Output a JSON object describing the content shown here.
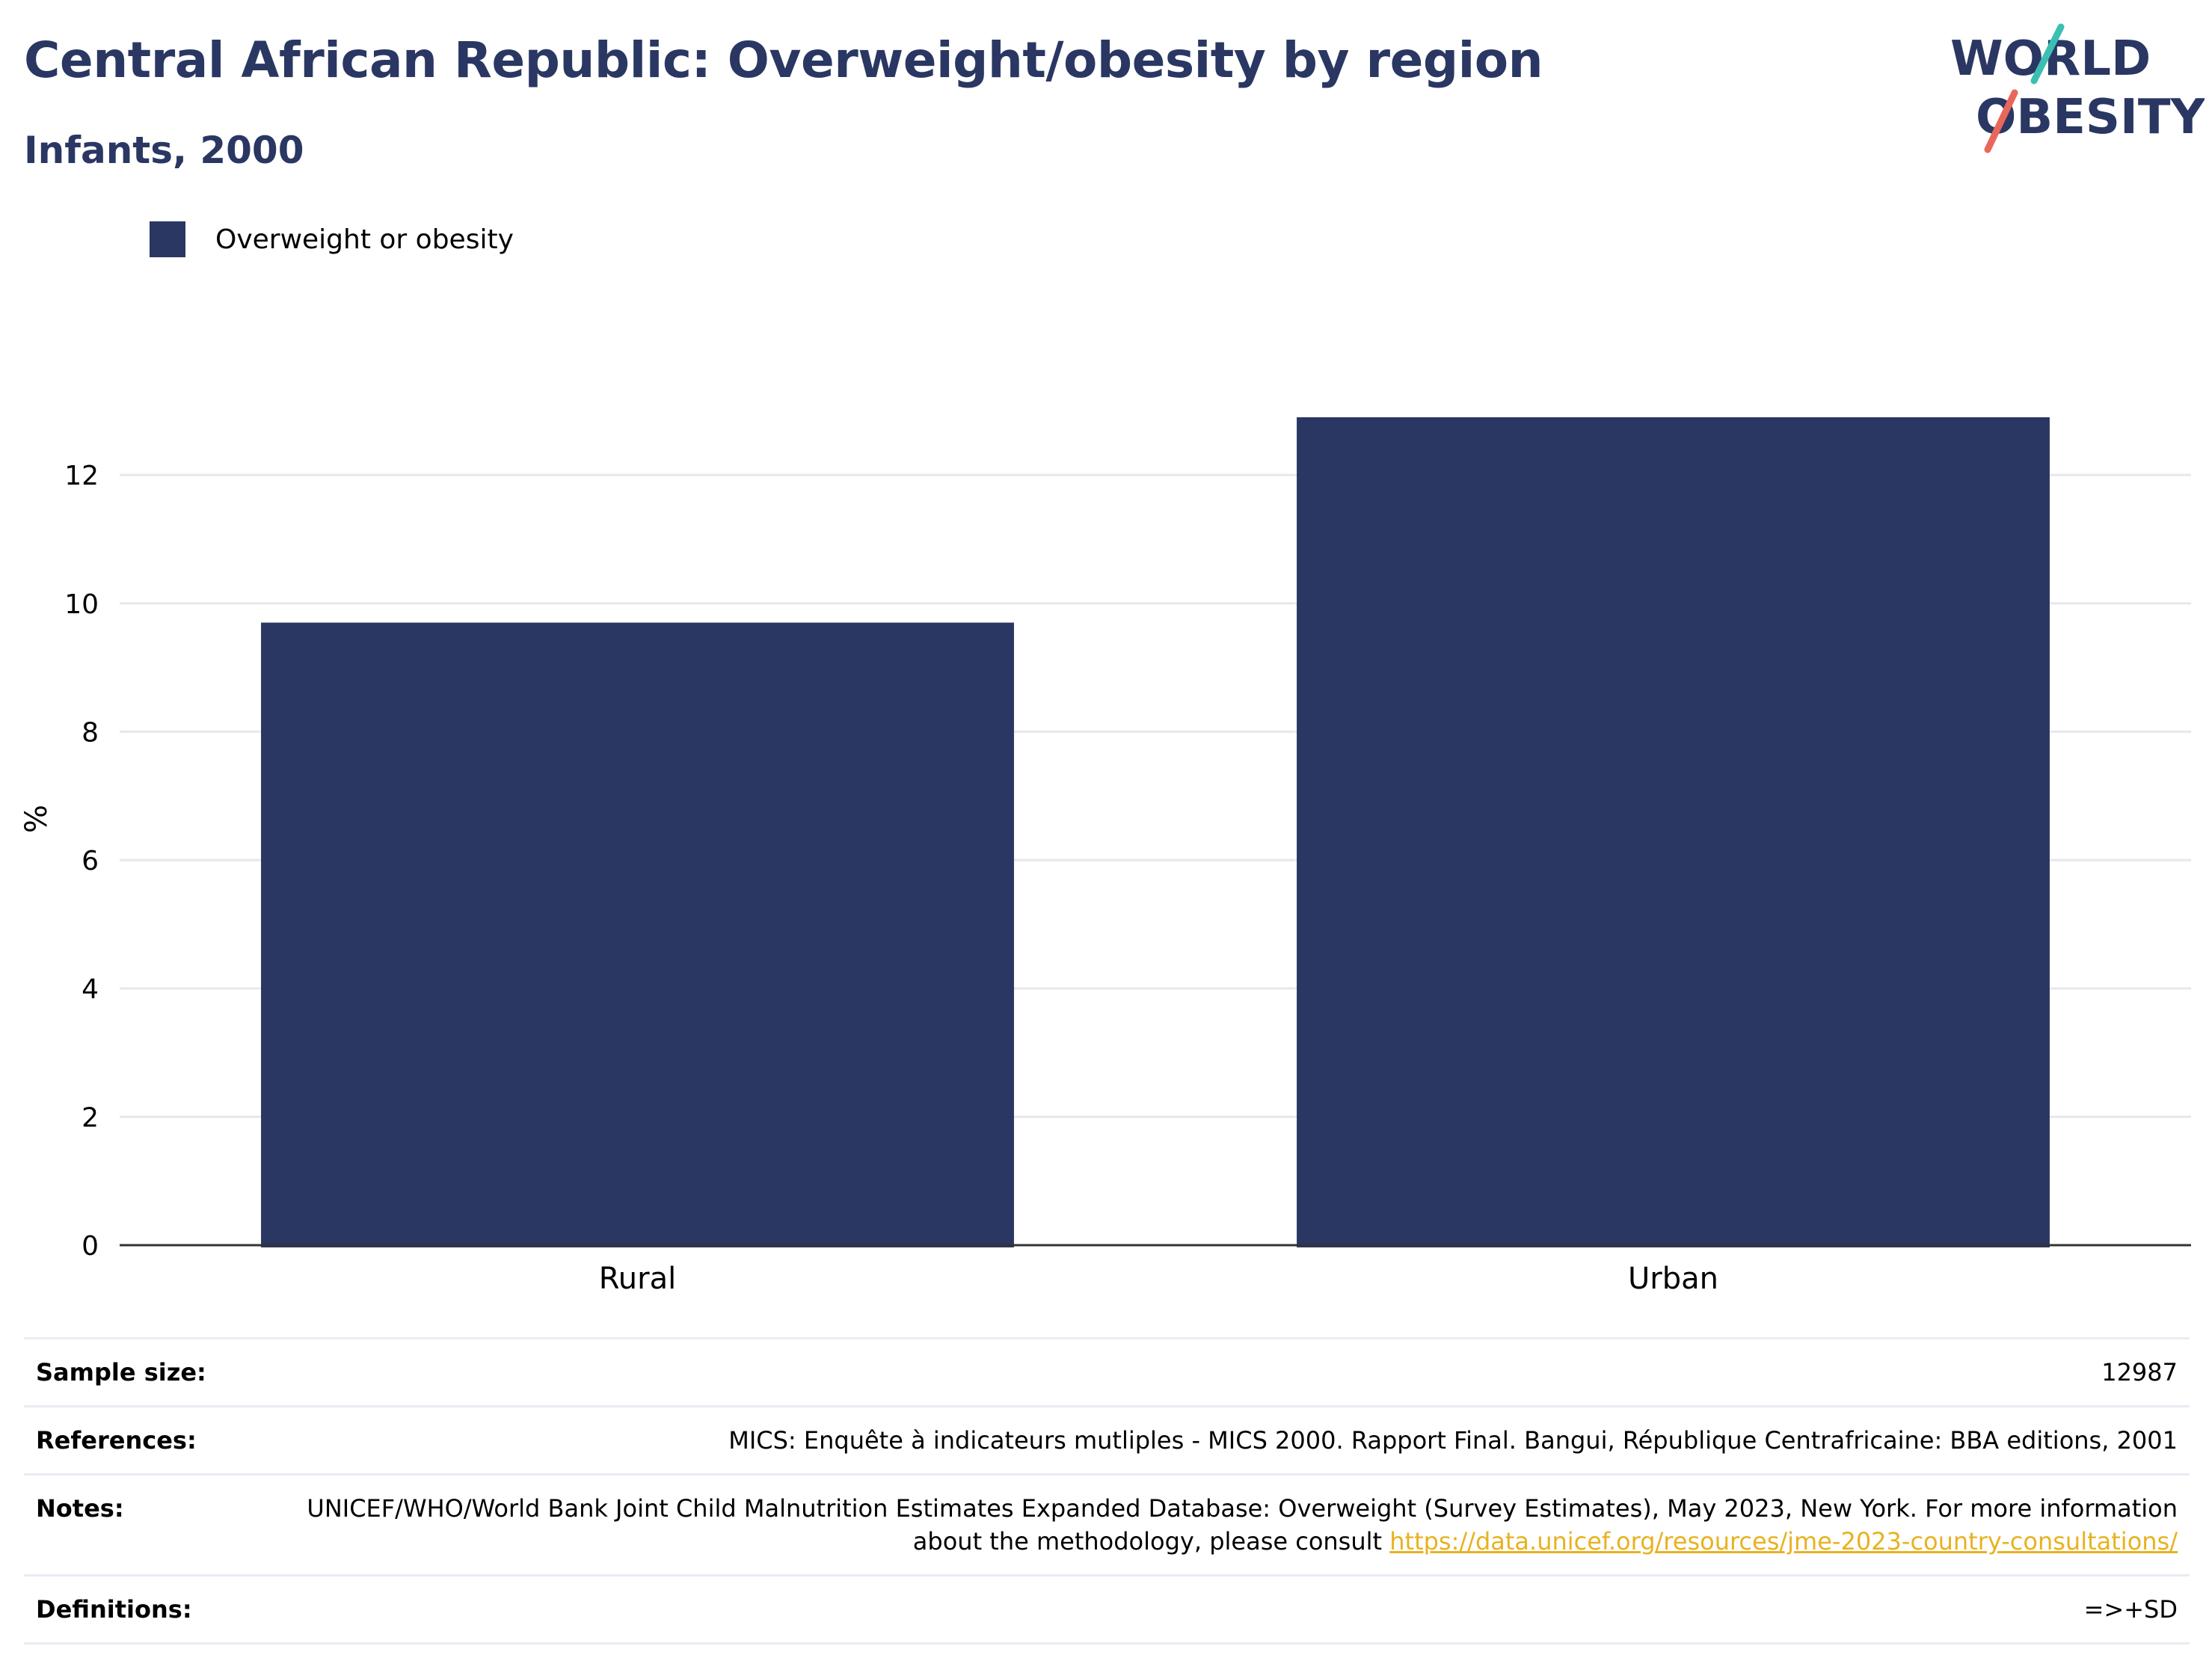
{
  "header": {
    "title": "Central African Republic: Overweight/obesity by region",
    "subtitle": "Infants, 2000"
  },
  "logo": {
    "line1": "WORLD",
    "line2": "OBESITY"
  },
  "colors": {
    "bar": "#2a3763",
    "title": "#2a3763",
    "link": "#e8b21f",
    "logo_teal": "#3bbfb2",
    "logo_red": "#e8675a"
  },
  "chart_data": {
    "type": "bar",
    "categories": [
      "Rural",
      "Urban"
    ],
    "series": [
      {
        "name": "Overweight or obesity",
        "values": [
          9.7,
          12.9
        ]
      }
    ],
    "ylabel": "%",
    "xlabel": "",
    "ylim": [
      0,
      13.4
    ],
    "yticks": [
      0,
      2,
      4,
      6,
      8,
      10,
      12
    ],
    "grid": true,
    "legend": "top-left"
  },
  "info": {
    "sample_size_label": "Sample size:",
    "sample_size_value": "12987",
    "references_label": "References:",
    "references_value": "MICS: Enquête à indicateurs mutliples - MICS 2000. Rapport Final. Bangui, République Centrafricaine: BBA editions, 2001",
    "notes_label": "Notes:",
    "notes_value": "UNICEF/WHO/World Bank Joint Child Malnutrition Estimates Expanded Database: Overweight (Survey Estimates), May 2023, New York. For more information about the methodology, please consult ",
    "notes_link": "https://data.unicef.org/resources/jme-2023-country-consultations/",
    "definitions_label": "Definitions:",
    "definitions_value": "=>+SD"
  }
}
